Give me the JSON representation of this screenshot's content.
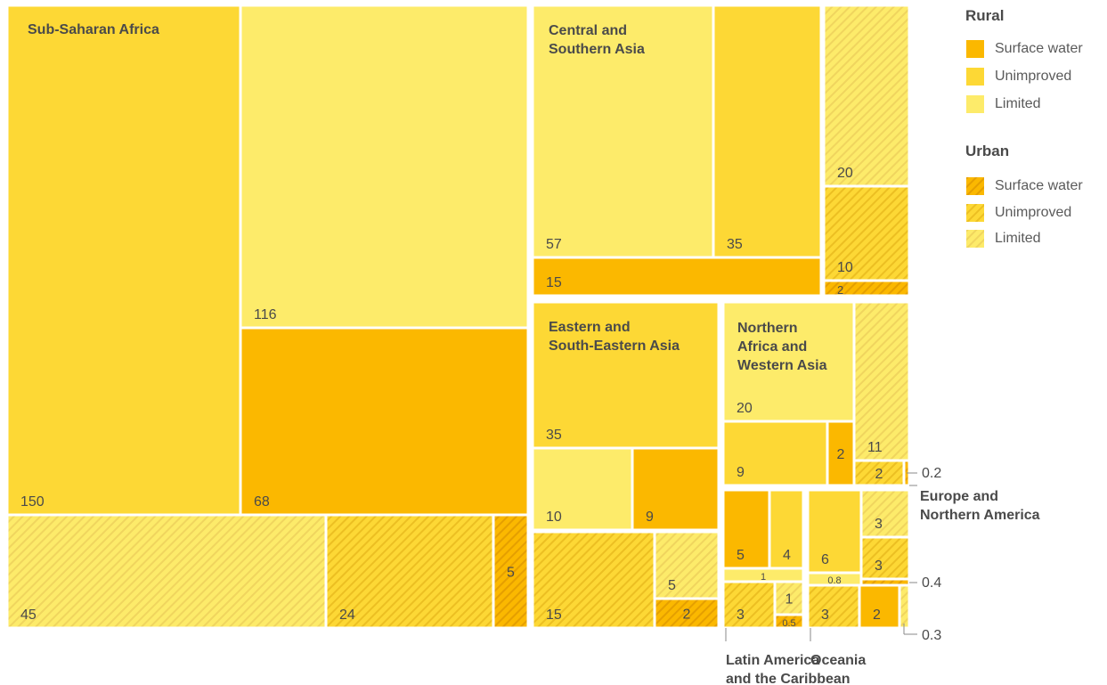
{
  "chart_data": {
    "type": "treemap",
    "colors": {
      "Surface water": "#fbb800",
      "Unimproved": "#fdd835",
      "Limited": "#fdeb6a",
      "border": "#ffffff",
      "label": "#4a4a4a"
    },
    "legend": {
      "groups": [
        {
          "title": "Rural",
          "items": [
            "Surface water",
            "Unimproved",
            "Limited"
          ]
        },
        {
          "title": "Urban",
          "items": [
            "Surface water",
            "Unimproved",
            "Limited"
          ]
        }
      ]
    },
    "regions": [
      {
        "name": "Sub-Saharan Africa",
        "rural": {
          "Unimproved": 150,
          "Limited": 116,
          "Surface water": 68
        },
        "urban": {
          "Limited": 45,
          "Unimproved": 24,
          "Surface water": 5
        }
      },
      {
        "name": "Central and Southern Asia",
        "rural": {
          "Limited": 57,
          "Unimproved": 35,
          "Surface water": 15
        },
        "urban": {
          "Limited": 20,
          "Unimproved": 10,
          "Surface water": 2
        }
      },
      {
        "name": "Eastern and South-Eastern Asia",
        "rural": {
          "Unimproved": 35,
          "Limited": 10,
          "Surface water": 9
        },
        "urban": {
          "Unimproved": 15,
          "Limited": 5,
          "Surface water": 2
        }
      },
      {
        "name": "Northern Africa and Western Asia",
        "rural": {
          "Limited": 20,
          "Unimproved": 9,
          "Surface water": 2
        },
        "urban": {
          "Limited": 11,
          "Unimproved": 2,
          "Surface water": 0.2
        }
      },
      {
        "name": "Latin America and the Caribbean",
        "rural": {
          "Surface water": 5,
          "Unimproved": 4,
          "Limited": 1
        },
        "urban": {
          "Unimproved": 3,
          "Limited": 1,
          "Surface water": 0.5
        }
      },
      {
        "name": "Oceania",
        "rural": {
          "Unimproved": 6,
          "Limited": 0.8,
          "Surface water": 2
        },
        "urban": {
          "Unimproved": 3,
          "Limited": 0.3
        }
      },
      {
        "name": "Europe and Northern America",
        "rural": {},
        "urban": {
          "Limited": 3,
          "Unimproved": 3,
          "Surface water": 0.4
        }
      }
    ]
  }
}
